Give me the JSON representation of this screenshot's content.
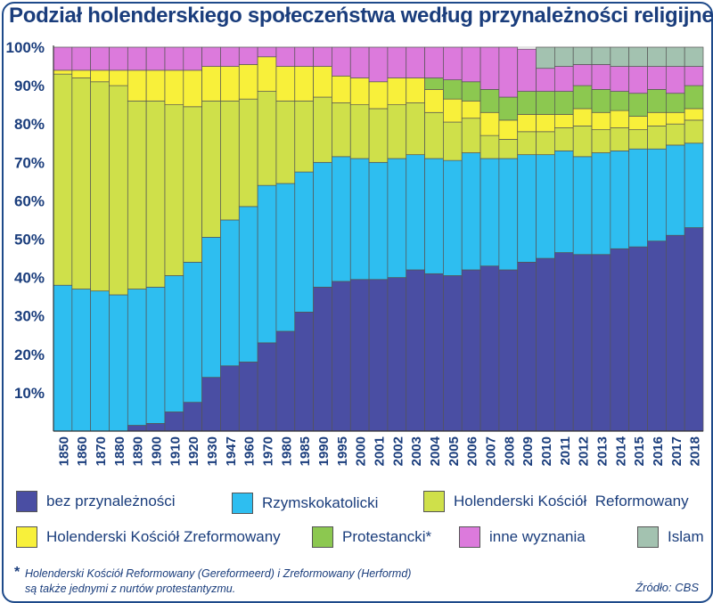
{
  "chart_data": {
    "type": "bar",
    "stacked": true,
    "title": "Podział holenderskiego społeczeństwa według przynależności religijnej",
    "categories": [
      "1850",
      "1860",
      "1870",
      "1880",
      "1890",
      "1900",
      "1910",
      "1920",
      "1930",
      "1947",
      "1960",
      "1970",
      "1980",
      "1985",
      "1990",
      "1995",
      "2000",
      "2001",
      "2002",
      "2003",
      "2004",
      "2005",
      "2006",
      "2007",
      "2008",
      "2009",
      "2010",
      "2011",
      "2012",
      "2013",
      "2014",
      "2015",
      "2016",
      "2017",
      "2018"
    ],
    "ylim": [
      0,
      100
    ],
    "yticks": [
      10,
      20,
      30,
      40,
      50,
      60,
      70,
      80,
      90,
      100
    ],
    "ytick_labels": [
      "10%",
      "20%",
      "30%",
      "40%",
      "50%",
      "60%",
      "70%",
      "80%",
      "90%",
      "100%"
    ],
    "series": [
      {
        "name": "bez przynależności",
        "color": "#4a4ea3",
        "values": [
          0,
          0,
          0,
          0,
          1.5,
          2,
          5,
          7.5,
          14,
          17,
          18,
          23,
          26,
          31,
          37.5,
          39,
          39.5,
          39.5,
          40,
          42,
          41,
          40.5,
          42,
          43,
          42,
          44,
          45,
          46.5,
          46,
          46,
          47.5,
          48,
          49.5,
          51,
          53
        ]
      },
      {
        "name": "Rzymskokatolicki",
        "color": "#2ebef0",
        "values": [
          38,
          37,
          36.5,
          35.5,
          35.5,
          35.5,
          35.5,
          36.5,
          36.5,
          38,
          40.5,
          41,
          38.5,
          36.5,
          32.5,
          32.5,
          31.5,
          30.5,
          31,
          30,
          30,
          30,
          30.5,
          28,
          29,
          28,
          27,
          26.5,
          25.5,
          26.5,
          25.5,
          25.5,
          24,
          23.5,
          22
        ]
      },
      {
        "name": "Holenderski Kościół  Reformowany",
        "color": "#cfe04a",
        "values": [
          55,
          55,
          54.5,
          54.5,
          49,
          48.5,
          44.5,
          40.5,
          35.5,
          31,
          28,
          24.5,
          21.5,
          18.5,
          17,
          14,
          14,
          14,
          14,
          13.5,
          12,
          10,
          9,
          6,
          5,
          6,
          6,
          6,
          8,
          6,
          6,
          5,
          6,
          5.5,
          6
        ]
      },
      {
        "name": "Holenderski Kościół Zreformowany",
        "color": "#f8f03a",
        "values": [
          1,
          2,
          3,
          4,
          8,
          8,
          9,
          9.5,
          9,
          9,
          9,
          9,
          9,
          9,
          8,
          7,
          7,
          7,
          7,
          6.5,
          6,
          6,
          4.5,
          6,
          5,
          4.5,
          4.5,
          3.5,
          4.5,
          4.5,
          4.5,
          3.5,
          3.5,
          3,
          3
        ]
      },
      {
        "name": "Protestancki*",
        "color": "#8cc850",
        "values": [
          0,
          0,
          0,
          0,
          0,
          0,
          0,
          0,
          0,
          0,
          0,
          0,
          0,
          0,
          0,
          0,
          0,
          0,
          0,
          0,
          3,
          5,
          5,
          6,
          6,
          6,
          6,
          6,
          6,
          6,
          5,
          6,
          6,
          5,
          6
        ]
      },
      {
        "name": "inne wyznania",
        "color": "#dc7adc",
        "values": [
          6,
          6,
          6,
          6,
          6,
          6,
          6,
          6,
          5,
          5,
          4.5,
          2.5,
          5,
          5,
          5,
          7.5,
          8,
          9,
          8,
          8,
          8,
          8.5,
          9,
          11,
          13,
          11,
          6,
          6.5,
          5.5,
          6.5,
          6.5,
          7,
          6,
          7,
          5
        ]
      },
      {
        "name": "Islam",
        "color": "#a3c2b0",
        "values": [
          0,
          0,
          0,
          0,
          0,
          0,
          0,
          0,
          0,
          0,
          0,
          0,
          0,
          0,
          0,
          0,
          0,
          0,
          0,
          0,
          0,
          0,
          0,
          0,
          0,
          0,
          5.5,
          5,
          4.5,
          4.5,
          5,
          5,
          5,
          5,
          5
        ]
      }
    ]
  },
  "note": {
    "star": "*",
    "line1": "Holenderski Kościół Reformowany (Gereformeerd) i Zreformowany (Herformd)",
    "line2": "są także jednymi z nurtów protestantyzmu."
  },
  "source": "Źródło: CBS"
}
